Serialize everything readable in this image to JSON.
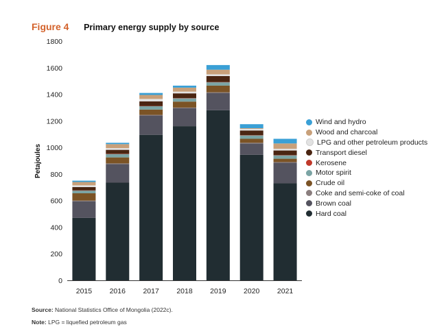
{
  "figure": {
    "label": "Figure 4",
    "title": "Primary energy supply by source"
  },
  "chart_data": {
    "type": "bar",
    "stacked": true,
    "title": "Primary energy supply by source",
    "xlabel": "",
    "ylabel": "Petajoules",
    "ylim": [
      0,
      1800
    ],
    "yticks": [
      0,
      200,
      400,
      600,
      800,
      1000,
      1200,
      1400,
      1600,
      1800
    ],
    "grid": false,
    "legend_position": "right",
    "categories": [
      "2015",
      "2016",
      "2017",
      "2018",
      "2019",
      "2020",
      "2021"
    ],
    "series": [
      {
        "name": "Hard coal",
        "color": "#212d32",
        "values": [
          470,
          735,
          1095,
          1160,
          1280,
          945,
          730
        ]
      },
      {
        "name": "Brown coal",
        "color": "#54535f",
        "values": [
          125,
          140,
          145,
          135,
          130,
          85,
          155
        ]
      },
      {
        "name": "Coke and semi-coke of coal",
        "color": "#8a7e7e",
        "values": [
          5,
          5,
          5,
          5,
          5,
          5,
          5
        ]
      },
      {
        "name": "Crude oil",
        "color": "#7b5325",
        "values": [
          55,
          45,
          40,
          45,
          50,
          30,
          25
        ]
      },
      {
        "name": "Motor spirit",
        "color": "#7ba4a4",
        "values": [
          20,
          25,
          25,
          25,
          25,
          25,
          25
        ]
      },
      {
        "name": "Kerosene",
        "color": "#c0392b",
        "values": [
          2,
          2,
          2,
          2,
          2,
          2,
          2
        ]
      },
      {
        "name": "Transport diesel",
        "color": "#4a2512",
        "values": [
          25,
          30,
          35,
          35,
          45,
          35,
          35
        ]
      },
      {
        "name": "LPG and other petroleum products",
        "color": "#e2e2e2",
        "values": [
          13,
          13,
          18,
          13,
          13,
          13,
          13
        ]
      },
      {
        "name": "Wood and charcoal",
        "color": "#c8a07a",
        "values": [
          25,
          30,
          30,
          30,
          35,
          5,
          40
        ]
      },
      {
        "name": "Wind and hydro",
        "color": "#3aa0d6",
        "values": [
          10,
          10,
          15,
          15,
          35,
          30,
          35
        ]
      }
    ],
    "legend_order": [
      "Wind and hydro",
      "Wood and charcoal",
      "LPG and other petroleum products",
      "Transport diesel",
      "Kerosene",
      "Motor spirit",
      "Crude oil",
      "Coke and semi-coke of coal",
      "Brown coal",
      "Hard coal"
    ]
  },
  "notes": {
    "source_label": "Source:",
    "source_text": "National Statistics Office of Mongolia (2022c).",
    "note_label": "Note:",
    "note_text": "LPG = liquefied petroleum gas"
  }
}
